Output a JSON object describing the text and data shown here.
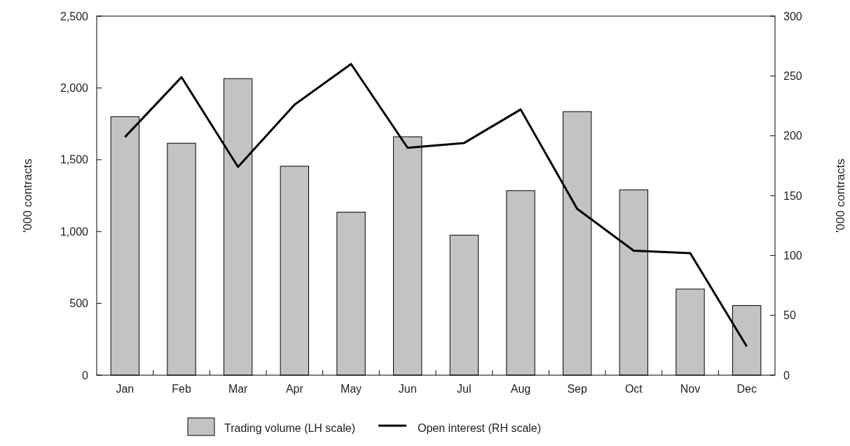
{
  "chart_data": {
    "type": "bar",
    "categories": [
      "Jan",
      "Feb",
      "Mar",
      "Apr",
      "May",
      "Jun",
      "Jul",
      "Aug",
      "Sep",
      "Oct",
      "Nov",
      "Dec"
    ],
    "ylabel": "'000 contracts",
    "y2label": "'000 contracts",
    "series": [
      {
        "name": "Trading volume (LH scale)",
        "color": "#c3c3c3",
        "values": [
          1800,
          1615,
          2065,
          1455,
          1135,
          1660,
          975,
          1285,
          1835,
          1290,
          600,
          485
        ]
      },
      {
        "name": "Open interest (RH scale)",
        "type": "line",
        "axis": "y2",
        "color": "#000000",
        "values": [
          199,
          249,
          174,
          226,
          260,
          190,
          194,
          222,
          139,
          104,
          102,
          24
        ]
      }
    ],
    "ylim": [
      0,
      2500
    ],
    "yticks": [
      0,
      {
        "value": 500,
        "label": "500"
      },
      {
        "value": 1000,
        "label": "1,000"
      },
      {
        "value": 1500,
        "label": "1,500"
      },
      {
        "value": 2000,
        "label": "2,000"
      },
      {
        "value": 2500,
        "label": "2,500"
      }
    ],
    "y2lim": [
      0,
      300
    ],
    "y2ticks": [
      0,
      50,
      100,
      150,
      200,
      250,
      300
    ],
    "grid": false,
    "legend": "bottom"
  }
}
